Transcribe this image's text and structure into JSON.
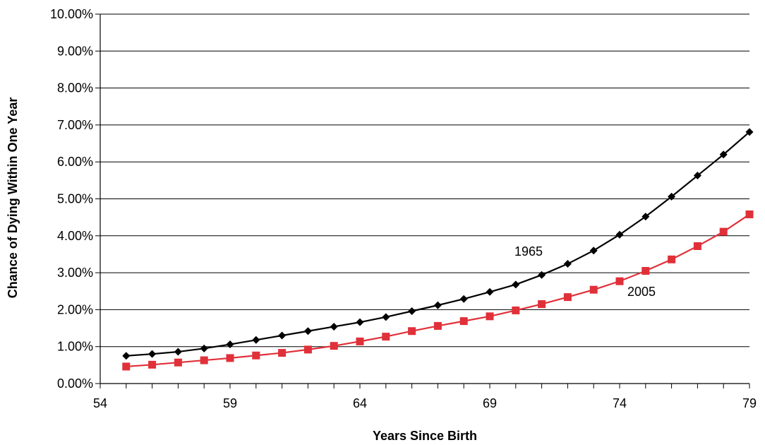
{
  "chart_data": {
    "type": "line",
    "title": "",
    "xlabel": "Years Since Birth",
    "ylabel": "Chance of Dying Within One Year",
    "xlim": [
      54,
      79
    ],
    "ylim": [
      0,
      0.1
    ],
    "x_ticks": [
      54,
      59,
      64,
      69,
      74,
      79
    ],
    "x_tick_labels": [
      "54",
      "59",
      "64",
      "69",
      "74",
      "79"
    ],
    "y_ticks": [
      0,
      0.01,
      0.02,
      0.03,
      0.04,
      0.05,
      0.06,
      0.07,
      0.08,
      0.09,
      0.1
    ],
    "y_tick_labels": [
      "0.00%",
      "1.00%",
      "2.00%",
      "3.00%",
      "4.00%",
      "5.00%",
      "6.00%",
      "7.00%",
      "8.00%",
      "9.00%",
      "10.00%"
    ],
    "grid": "horizontal",
    "legend": "none",
    "x": [
      55,
      56,
      57,
      58,
      59,
      60,
      61,
      62,
      63,
      64,
      65,
      66,
      67,
      68,
      69,
      70,
      71,
      72,
      73,
      74,
      75,
      76,
      77,
      78,
      79
    ],
    "series": [
      {
        "name": "1965",
        "color": "#000000",
        "marker": "diamond",
        "values": [
          0.0075,
          0.008,
          0.0086,
          0.0095,
          0.0106,
          0.0118,
          0.013,
          0.0142,
          0.0154,
          0.0166,
          0.018,
          0.0196,
          0.0212,
          0.0229,
          0.0248,
          0.0268,
          0.0294,
          0.0324,
          0.036,
          0.0403,
          0.0452,
          0.0506,
          0.0563,
          0.062,
          0.0681
        ]
      },
      {
        "name": "2005",
        "color": "#e03039",
        "marker": "square",
        "values": [
          0.0046,
          0.0051,
          0.0057,
          0.0063,
          0.0069,
          0.0076,
          0.0083,
          0.0092,
          0.0102,
          0.0114,
          0.0127,
          0.0142,
          0.0156,
          0.0169,
          0.0182,
          0.0198,
          0.0215,
          0.0234,
          0.0254,
          0.0277,
          0.0305,
          0.0336,
          0.0372,
          0.0411,
          0.0458
        ]
      }
    ]
  }
}
